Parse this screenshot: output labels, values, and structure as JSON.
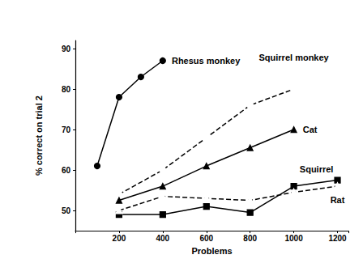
{
  "chart_data": {
    "type": "line",
    "x_label": "Problems",
    "y_label": "% correct on trial 2",
    "xlim": [
      0,
      1250
    ],
    "xticks": [
      200,
      400,
      600,
      800,
      1000,
      1200
    ],
    "ylim": [
      45,
      92
    ],
    "yticks": [
      50,
      60,
      70,
      80,
      90
    ],
    "grid": false,
    "series": [
      {
        "name": "Rhesus monkey",
        "color": "#000000",
        "marker": "circle",
        "line_style": "solid",
        "x": [
          100,
          200,
          300,
          400
        ],
        "values": [
          61,
          78,
          83,
          87
        ]
      },
      {
        "name": "Squirrel monkey",
        "color": "#000000",
        "marker": "circle-open",
        "line_style": "dashed",
        "x": [
          200,
          400,
          600,
          800,
          1000
        ],
        "values": [
          54,
          60,
          68,
          76,
          80
        ]
      },
      {
        "name": "Cat",
        "color": "#000000",
        "marker": "triangle",
        "line_style": "solid",
        "x": [
          200,
          400,
          600,
          800,
          1000
        ],
        "values": [
          52.5,
          56,
          61,
          65.5,
          70
        ]
      },
      {
        "name": "Squirrel",
        "color": "#000000",
        "marker": "square",
        "line_style": "solid",
        "x": [
          200,
          400,
          600,
          800,
          1000,
          1200
        ],
        "values": [
          49,
          49,
          51,
          49.5,
          56,
          57.5
        ]
      },
      {
        "name": "Rat",
        "color": "#000000",
        "marker": "triangle-open",
        "line_style": "dashed",
        "x": [
          200,
          400,
          600,
          800,
          1000,
          1200
        ],
        "values": [
          50,
          53.5,
          53,
          52.5,
          54.5,
          56
        ]
      }
    ]
  }
}
